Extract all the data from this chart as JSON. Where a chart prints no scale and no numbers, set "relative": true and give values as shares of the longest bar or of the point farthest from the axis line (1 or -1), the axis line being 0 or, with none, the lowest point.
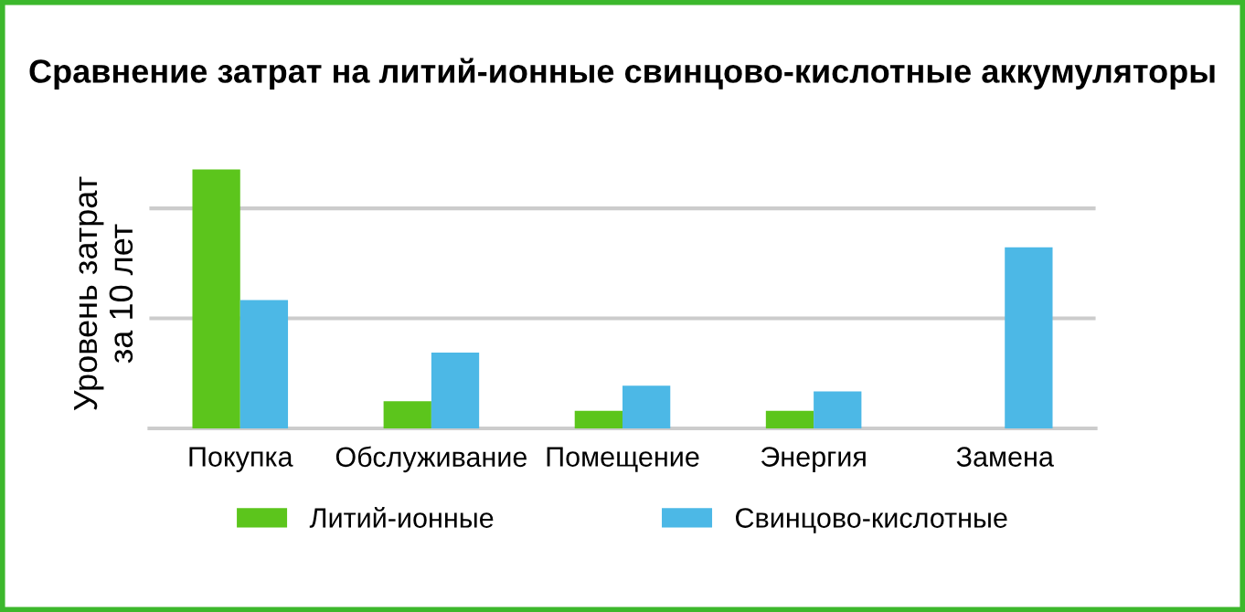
{
  "chart_data": {
    "type": "bar",
    "title": "Сравнение затрат на литий-ионные свинцово-кислотные аккумуляторы",
    "ylabel": "Уровень затрат\nза 10 лет",
    "categories": [
      "Покупка",
      "Обслуживание",
      "Помещение",
      "Энергия",
      "Замена"
    ],
    "relative": true,
    "series": [
      {
        "name": "Литий-ионные",
        "color": "#5cc51c",
        "values": [
          1,
          0.105,
          0.068,
          0.068,
          0
        ]
      },
      {
        "name": "Свинцово-кислотные",
        "color": "#4cb8e6",
        "values": [
          0.496,
          0.293,
          0.165,
          0.143,
          0.699
        ]
      }
    ],
    "ref_lines": [
      {
        "axis": "y",
        "value": 0.425,
        "color": "#cccccc"
      },
      {
        "axis": "y",
        "value": 0.85,
        "color": "#cccccc"
      }
    ],
    "legend": "bottom",
    "tick_labels": "x"
  }
}
